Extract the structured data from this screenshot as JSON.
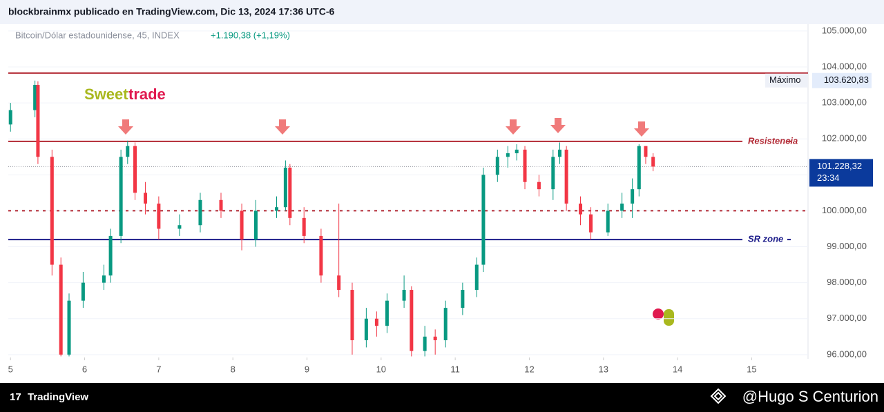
{
  "header": {
    "text": "blockbrainmx publicado en TradingView.com, Dic 13, 2024 17:36 UTC-6"
  },
  "footer": {
    "brand": "TradingView",
    "author": "@Hugo S Centurion"
  },
  "chart_data": {
    "type": "candlestick",
    "symbol": "Bitcoin/Dólar estadounidense, 45, INDEX",
    "change": "+1.190,38 (+1,19%)",
    "logo": {
      "part1": "Sweet",
      "part2": "trade"
    },
    "up_color": "#089981",
    "down_color": "#f23645",
    "xlim": [
      4.97,
      15.76
    ],
    "xticks": [
      5,
      6,
      7,
      8,
      9,
      10,
      11,
      12,
      13,
      14,
      15
    ],
    "ylim": [
      95920,
      105190
    ],
    "yticks": [
      {
        "value": 96000,
        "label": "96.000,00"
      },
      {
        "value": 97000,
        "label": "97.000,00"
      },
      {
        "value": 98000,
        "label": "98.000,00"
      },
      {
        "value": 99000,
        "label": "99.000,00"
      },
      {
        "value": 100000,
        "label": "100.000,00"
      },
      {
        "value": 101000,
        "label": "101.000,00"
      },
      {
        "value": 102000,
        "label": "102.000,00"
      },
      {
        "value": 103000,
        "label": "103.000,00"
      },
      {
        "value": 104000,
        "label": "104.000,00"
      },
      {
        "value": 105000,
        "label": "105.000,00"
      }
    ],
    "x": [
      5.0,
      5.33,
      5.37,
      5.56,
      5.68,
      5.79,
      5.98,
      6.26,
      6.35,
      6.49,
      6.58,
      6.68,
      6.82,
      7.0,
      7.28,
      7.56,
      7.84,
      8.12,
      8.31,
      8.59,
      8.71,
      8.77,
      8.96,
      9.19,
      9.43,
      9.61,
      9.8,
      9.94,
      10.08,
      10.31,
      10.41,
      10.59,
      10.73,
      10.87,
      11.1,
      11.29,
      11.38,
      11.57,
      11.71,
      11.83,
      11.94,
      12.13,
      12.32,
      12.41,
      12.5,
      12.69,
      12.83,
      13.06,
      13.25,
      13.39,
      13.48,
      13.57,
      13.67
    ],
    "open": [
      102400,
      102800,
      103500,
      101500,
      98500,
      96000,
      97500,
      98000,
      98200,
      99300,
      101500,
      101800,
      100500,
      100200,
      99500,
      99600,
      100300,
      100000,
      99200,
      100000,
      100100,
      101200,
      99800,
      99300,
      98200,
      97800,
      96400,
      97000,
      96800,
      97500,
      97800,
      96100,
      96500,
      96400,
      97300,
      97800,
      98500,
      101000,
      101500,
      101600,
      101700,
      100800,
      100600,
      101500,
      101700,
      100200,
      99900,
      99400,
      100000,
      100200,
      100600,
      101800,
      101500
    ],
    "high": [
      103000,
      103620.83,
      103600,
      101700,
      98700,
      97700,
      98300,
      98500,
      99500,
      101700,
      101950,
      101900,
      100800,
      100400,
      99900,
      100500,
      100500,
      100200,
      100300,
      100400,
      101400,
      101300,
      100100,
      99500,
      100200,
      98000,
      97300,
      97200,
      97700,
      98200,
      97900,
      96800,
      96700,
      97500,
      98000,
      98700,
      101200,
      101700,
      101800,
      101850,
      101800,
      101000,
      101700,
      101900,
      101800,
      100400,
      100100,
      100200,
      100500,
      100900,
      101850,
      101800,
      101600
    ],
    "low": [
      102200,
      102600,
      101300,
      98200,
      95950,
      95950,
      97300,
      97800,
      98000,
      99100,
      101300,
      100300,
      99900,
      99200,
      99300,
      99400,
      99800,
      98900,
      99000,
      99800,
      100000,
      99600,
      99100,
      98000,
      97600,
      96000,
      96200,
      96500,
      96600,
      97300,
      95950,
      95950,
      96000,
      96200,
      97100,
      97600,
      98300,
      100800,
      101200,
      101400,
      100600,
      100400,
      100300,
      101300,
      100000,
      99600,
      99200,
      99300,
      99800,
      99800,
      100400,
      101300,
      101100
    ],
    "close": [
      102800,
      103500,
      101500,
      98500,
      96000,
      97500,
      98000,
      98200,
      99300,
      101500,
      101800,
      100500,
      100200,
      99500,
      99600,
      100300,
      100000,
      99200,
      100000,
      100100,
      101200,
      99800,
      99300,
      98200,
      97800,
      96400,
      97000,
      96800,
      97500,
      97800,
      96100,
      96500,
      96400,
      97300,
      97800,
      98500,
      101000,
      101500,
      101600,
      101700,
      100800,
      100600,
      101500,
      101700,
      100200,
      99900,
      99400,
      100000,
      100200,
      100600,
      101800,
      101500,
      101228.32
    ],
    "hlines": [
      {
        "value": 103830,
        "color": "#b22833"
      },
      {
        "value": 101930,
        "color": "#b22833",
        "label": "Resistencia"
      },
      {
        "value": 100000,
        "color": "#b22833",
        "dash": true
      },
      {
        "value": 99200,
        "color": "#1c1c8a",
        "label": "SR zone"
      }
    ],
    "max_marker": {
      "label": "Máximo",
      "value": 103620.83,
      "value_label": "103.620,83"
    },
    "last_price": {
      "value": 101228.32,
      "value_label": "101.228,32",
      "countdown": "23:34",
      "color": "#0b3a9c"
    }
  }
}
